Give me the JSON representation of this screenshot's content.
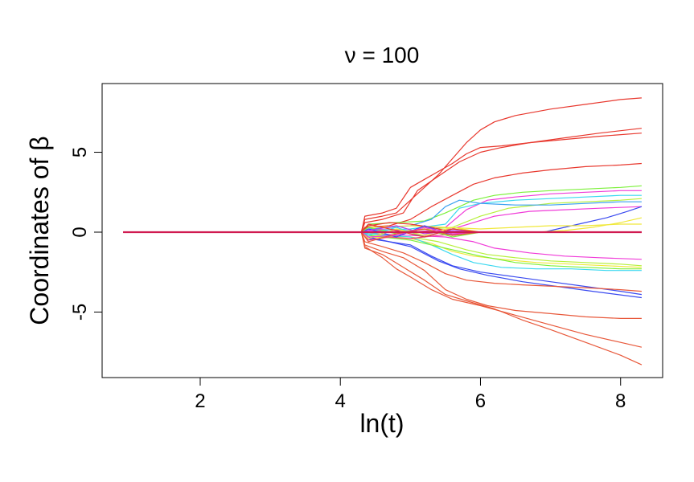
{
  "chart_data": {
    "type": "line",
    "title": "ν = 100",
    "xlabel": "ln(t)",
    "ylabel": "Coordinates of β",
    "xlim": [
      0.6,
      8.6
    ],
    "ylim": [
      -9.1,
      9.3
    ],
    "xticks": [
      2,
      4,
      6,
      8
    ],
    "xtick_labels": [
      "2",
      "4",
      "6",
      "8"
    ],
    "yticks": [
      -5,
      0,
      5
    ],
    "ytick_labels": [
      "-5",
      "0",
      "5"
    ],
    "grid": false,
    "legend": "none",
    "series": [
      {
        "color": "#e8382e",
        "x": [
          0.9,
          4.3,
          4.35,
          4.6,
          4.8,
          5.0,
          5.2,
          5.4,
          5.6,
          5.8,
          6.0,
          6.2,
          6.5,
          7.0,
          7.5,
          8.0,
          8.3
        ],
        "y": [
          0,
          0,
          0.8,
          1.0,
          1.2,
          2.0,
          2.8,
          3.6,
          4.6,
          5.6,
          6.4,
          6.9,
          7.3,
          7.7,
          8.0,
          8.3,
          8.4
        ]
      },
      {
        "color": "#e8382e",
        "x": [
          0.9,
          4.3,
          4.35,
          4.6,
          4.8,
          5.0,
          5.2,
          5.4,
          5.6,
          5.8,
          6.0,
          6.3,
          6.7,
          7.2,
          7.7,
          8.3
        ],
        "y": [
          0,
          0,
          1.0,
          1.2,
          1.5,
          2.8,
          3.3,
          3.8,
          4.3,
          4.9,
          5.3,
          5.4,
          5.6,
          5.9,
          6.2,
          6.5
        ]
      },
      {
        "color": "#e8382e",
        "x": [
          0.9,
          4.3,
          4.35,
          4.6,
          4.9,
          5.1,
          5.3,
          5.5,
          5.7,
          6.0,
          6.3,
          6.7,
          7.2,
          7.7,
          8.3
        ],
        "y": [
          0,
          0,
          0.6,
          0.8,
          1.2,
          2.6,
          3.2,
          3.8,
          4.4,
          5.0,
          5.3,
          5.6,
          5.8,
          6.0,
          6.2
        ]
      },
      {
        "color": "#e8382e",
        "x": [
          0.9,
          4.3,
          4.35,
          4.7,
          5.0,
          5.3,
          5.6,
          5.9,
          6.2,
          6.6,
          7.0,
          7.5,
          8.0,
          8.3
        ],
        "y": [
          0,
          0,
          0.3,
          0.4,
          0.8,
          1.6,
          2.3,
          3.0,
          3.4,
          3.7,
          3.9,
          4.1,
          4.2,
          4.3
        ]
      },
      {
        "color": "#7cf03a",
        "x": [
          0.9,
          4.3,
          4.4,
          4.8,
          5.2,
          5.5,
          5.7,
          5.9,
          6.2,
          6.6,
          7.0,
          7.5,
          8.0,
          8.3
        ],
        "y": [
          0,
          0,
          0.5,
          0.6,
          0.7,
          1.2,
          1.6,
          2.0,
          2.3,
          2.5,
          2.6,
          2.7,
          2.8,
          2.9
        ]
      },
      {
        "color": "#f03ad8",
        "x": [
          0.9,
          4.3,
          4.4,
          5.0,
          5.5,
          5.8,
          6.1,
          6.5,
          7.0,
          7.5,
          8.0,
          8.3
        ],
        "y": [
          0,
          0,
          0.2,
          0.1,
          0.3,
          1.4,
          2.0,
          2.2,
          2.4,
          2.5,
          2.6,
          2.6
        ]
      },
      {
        "color": "#3ad8f0",
        "x": [
          0.9,
          4.3,
          4.4,
          5.0,
          5.5,
          5.7,
          6.0,
          6.5,
          7.0,
          7.5,
          8.0,
          8.3
        ],
        "y": [
          0,
          0,
          0.1,
          0.2,
          0.5,
          1.5,
          1.8,
          2.0,
          2.1,
          2.2,
          2.3,
          2.3
        ]
      },
      {
        "color": "#b6f03a",
        "x": [
          0.9,
          4.3,
          4.4,
          5.0,
          5.6,
          6.0,
          6.4,
          7.0,
          7.5,
          8.0,
          8.3
        ],
        "y": [
          0,
          0,
          -0.1,
          0.1,
          0.3,
          1.0,
          1.5,
          1.8,
          1.9,
          2.0,
          2.1
        ]
      },
      {
        "color": "#3aa0f0",
        "x": [
          0.9,
          4.3,
          4.4,
          5.0,
          5.3,
          5.5,
          5.7,
          6.0,
          6.5,
          7.0,
          7.5,
          8.0,
          8.3
        ],
        "y": [
          0,
          0,
          0.2,
          0.4,
          0.8,
          1.6,
          2.0,
          1.8,
          1.7,
          1.7,
          1.8,
          1.9,
          1.9
        ]
      },
      {
        "color": "#f03ad8",
        "x": [
          0.9,
          4.3,
          4.4,
          5.0,
          5.6,
          5.9,
          6.2,
          6.7,
          7.2,
          7.7,
          8.3
        ],
        "y": [
          0,
          0,
          0.1,
          0.0,
          0.2,
          0.6,
          1.0,
          1.3,
          1.4,
          1.5,
          1.6
        ]
      },
      {
        "color": "#3a4af0",
        "x": [
          0.9,
          6.9,
          7.1,
          7.4,
          7.8,
          8.1,
          8.3
        ],
        "y": [
          0,
          0,
          0.2,
          0.5,
          0.9,
          1.3,
          1.6
        ]
      },
      {
        "color": "#f0e83a",
        "x": [
          0.9,
          6.8,
          7.2,
          7.6,
          8.0,
          8.3
        ],
        "y": [
          0,
          0,
          0.1,
          0.3,
          0.6,
          0.9
        ]
      },
      {
        "color": "#f0e83a",
        "x": [
          0.9,
          4.3,
          4.4,
          5.0,
          5.5,
          6.0,
          6.5,
          7.0,
          7.5,
          8.0,
          8.3
        ],
        "y": [
          0,
          0,
          0.3,
          0.4,
          0.3,
          0.2,
          0.3,
          0.4,
          0.4,
          0.5,
          0.5
        ]
      },
      {
        "color": "#f03ad8",
        "x": [
          0.9,
          4.3,
          4.4,
          5.0,
          5.5,
          5.9,
          6.2,
          6.7,
          7.2,
          7.7,
          8.3
        ],
        "y": [
          0,
          0,
          -0.1,
          -0.2,
          -0.3,
          -0.6,
          -1.0,
          -1.3,
          -1.5,
          -1.6,
          -1.7
        ]
      },
      {
        "color": "#b6f03a",
        "x": [
          0.9,
          4.3,
          4.4,
          5.0,
          5.4,
          5.8,
          6.1,
          6.5,
          7.0,
          7.5,
          8.0,
          8.3
        ],
        "y": [
          0,
          0,
          -0.2,
          -0.3,
          -0.6,
          -1.1,
          -1.4,
          -1.6,
          -1.8,
          -1.9,
          -2.0,
          -2.1
        ]
      },
      {
        "color": "#f0e83a",
        "x": [
          0.9,
          4.3,
          4.4,
          5.0,
          5.3,
          5.6,
          5.9,
          6.3,
          6.8,
          7.3,
          7.8,
          8.3
        ],
        "y": [
          0,
          0,
          -0.3,
          -0.4,
          -0.7,
          -1.2,
          -1.5,
          -1.7,
          -1.9,
          -2.0,
          -2.1,
          -2.2
        ]
      },
      {
        "color": "#3ad8f0",
        "x": [
          0.9,
          4.3,
          4.4,
          5.0,
          5.3,
          5.6,
          5.9,
          6.3,
          6.8,
          7.3,
          7.8,
          8.3
        ],
        "y": [
          0,
          0,
          -0.1,
          -0.3,
          -0.8,
          -1.4,
          -1.9,
          -2.2,
          -2.3,
          -2.3,
          -2.4,
          -2.4
        ]
      },
      {
        "color": "#7cf03a",
        "x": [
          0.9,
          4.3,
          4.4,
          5.0,
          5.5,
          6.0,
          6.5,
          7.0,
          7.5,
          8.0,
          8.3
        ],
        "y": [
          0,
          0,
          -0.2,
          -0.5,
          -1.0,
          -1.5,
          -1.9,
          -2.1,
          -2.2,
          -2.3,
          -2.3
        ]
      },
      {
        "color": "#3a4af0",
        "x": [
          0.9,
          4.3,
          4.4,
          5.0,
          5.3,
          5.6,
          6.0,
          6.5,
          7.0,
          7.5,
          8.0,
          8.3
        ],
        "y": [
          0,
          0,
          -0.4,
          -0.8,
          -1.5,
          -2.1,
          -2.5,
          -2.8,
          -3.1,
          -3.4,
          -3.7,
          -3.9
        ]
      },
      {
        "color": "#3a4af0",
        "x": [
          0.9,
          4.3,
          4.4,
          5.0,
          5.4,
          5.7,
          6.1,
          6.6,
          7.1,
          7.6,
          8.3
        ],
        "y": [
          0,
          0,
          -0.3,
          -0.9,
          -1.8,
          -2.3,
          -2.7,
          -3.1,
          -3.4,
          -3.7,
          -4.1
        ]
      },
      {
        "color": "#e8583a",
        "x": [
          0.9,
          4.3,
          4.35,
          4.6,
          4.9,
          5.2,
          5.5,
          5.8,
          6.2,
          6.6,
          7.1,
          7.6,
          8.0,
          8.3
        ],
        "y": [
          0,
          0,
          -0.6,
          -0.9,
          -1.3,
          -1.9,
          -2.6,
          -3.0,
          -3.2,
          -3.3,
          -3.4,
          -3.5,
          -3.6,
          -3.7
        ]
      },
      {
        "color": "#e8583a",
        "x": [
          0.9,
          4.3,
          4.35,
          4.6,
          4.9,
          5.2,
          5.5,
          5.8,
          6.1,
          6.5,
          7.0,
          7.5,
          8.0,
          8.3
        ],
        "y": [
          0,
          0,
          -0.8,
          -1.2,
          -1.6,
          -2.4,
          -3.6,
          -4.2,
          -4.6,
          -4.9,
          -5.1,
          -5.3,
          -5.4,
          -5.4
        ]
      },
      {
        "color": "#e8583a",
        "x": [
          0.9,
          4.3,
          4.35,
          4.6,
          4.8,
          5.0,
          5.3,
          5.6,
          6.0,
          6.5,
          7.0,
          7.5,
          8.0,
          8.3
        ],
        "y": [
          0,
          0,
          -0.9,
          -1.6,
          -2.3,
          -2.8,
          -3.6,
          -4.2,
          -4.6,
          -5.2,
          -5.8,
          -6.4,
          -6.9,
          -7.2
        ]
      },
      {
        "color": "#e8583a",
        "x": [
          0.9,
          4.3,
          4.35,
          4.6,
          4.9,
          5.2,
          5.5,
          5.8,
          6.2,
          6.6,
          7.0,
          7.5,
          8.0,
          8.3
        ],
        "y": [
          0,
          0,
          -1.0,
          -1.4,
          -2.2,
          -3.0,
          -3.9,
          -4.3,
          -4.8,
          -5.5,
          -6.1,
          -6.9,
          -7.7,
          -8.3
        ]
      },
      {
        "color": "#e8382e",
        "x": [
          0.9,
          4.3,
          4.4,
          4.7,
          5.0,
          5.3,
          5.5
        ],
        "y": [
          0,
          0,
          0.4,
          0.6,
          0.5,
          0.3,
          0.1
        ]
      },
      {
        "color": "#f03a8a",
        "x": [
          0.9,
          4.3,
          4.4,
          4.7,
          5.0,
          5.4,
          5.7,
          6.0,
          8.3
        ],
        "y": [
          0,
          0,
          -0.5,
          -0.3,
          -0.4,
          -0.2,
          -0.1,
          0,
          0
        ]
      },
      {
        "color": "#3a4af0",
        "x": [
          0.9,
          4.3,
          4.4,
          4.8,
          5.2,
          5.6,
          6.0,
          8.3
        ],
        "y": [
          0,
          0,
          0.2,
          -0.3,
          0.4,
          -0.2,
          0,
          0
        ]
      },
      {
        "color": "#3ad8f0",
        "x": [
          0.9,
          4.3,
          4.4,
          4.8,
          5.2,
          5.6,
          6.0,
          8.3
        ],
        "y": [
          0,
          0,
          -0.2,
          0.3,
          -0.3,
          0.2,
          0,
          0
        ]
      },
      {
        "color": "#7cf03a",
        "x": [
          0.9,
          4.3,
          4.4,
          4.8,
          5.2,
          5.6,
          6.0,
          8.3
        ],
        "y": [
          0,
          0,
          0.3,
          -0.1,
          0.2,
          -0.3,
          0,
          0
        ]
      },
      {
        "color": "#f0e83a",
        "x": [
          0.9,
          4.3,
          4.4,
          4.8,
          5.2,
          5.6,
          6.0,
          8.3
        ],
        "y": [
          0,
          0,
          -0.4,
          0.2,
          -0.2,
          0.3,
          0,
          0
        ]
      },
      {
        "color": "#b63af0",
        "x": [
          0.9,
          4.3,
          4.4,
          4.8,
          5.2,
          5.6,
          6.0,
          8.3
        ],
        "y": [
          0,
          0,
          0.1,
          0.4,
          -0.1,
          0.1,
          0,
          0
        ]
      },
      {
        "color": "#f03ad8",
        "x": [
          0.9,
          4.3,
          4.4,
          4.8,
          5.2,
          5.6,
          6.0,
          8.3
        ],
        "y": [
          0,
          0,
          -0.3,
          -0.2,
          0.3,
          -0.1,
          0,
          0
        ]
      },
      {
        "color": "#e8382e",
        "x": [
          0.9,
          4.3,
          4.4,
          4.8,
          5.2,
          5.6,
          6.0,
          8.3
        ],
        "y": [
          0,
          0,
          0.5,
          0.1,
          -0.3,
          0.2,
          0,
          0
        ]
      },
      {
        "color": "#e8583a",
        "x": [
          0.9,
          4.3,
          4.4,
          4.8,
          5.2,
          5.6,
          6.0,
          8.3
        ],
        "y": [
          0,
          0,
          -0.6,
          -0.1,
          0.2,
          -0.2,
          0,
          0
        ]
      },
      {
        "color": "#d01a50",
        "x": [
          0.9,
          8.3
        ],
        "y": [
          0,
          0
        ]
      }
    ]
  }
}
